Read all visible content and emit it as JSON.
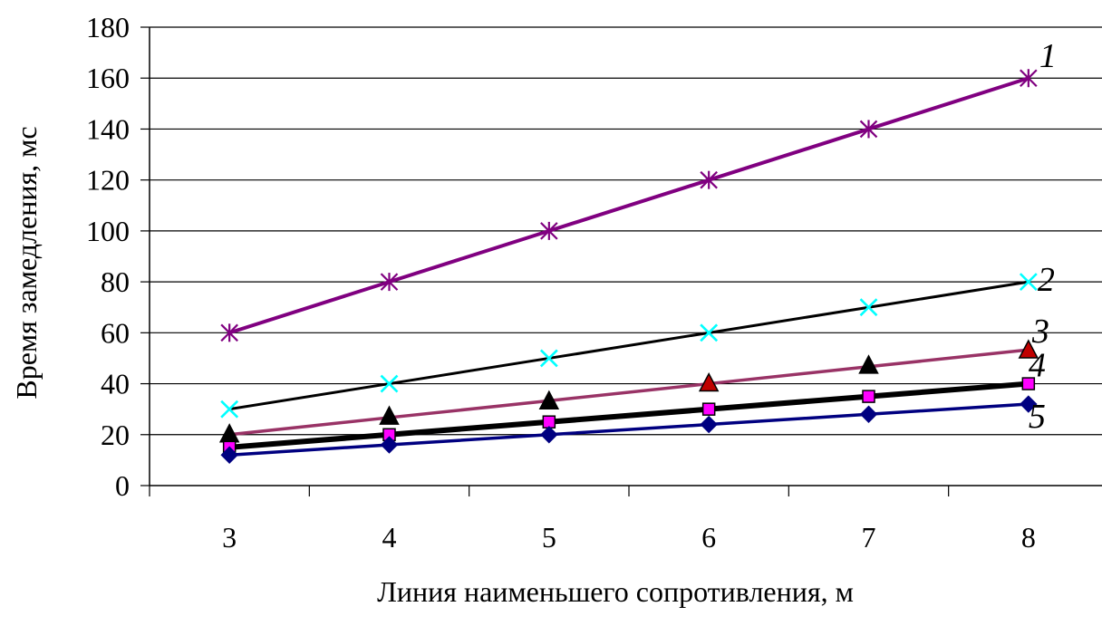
{
  "chart_data": {
    "type": "line",
    "title": "",
    "xlabel": "Линия наименьшего сопротивления, м",
    "ylabel": "Время замедления, мс",
    "categories": [
      "3",
      "4",
      "5",
      "6",
      "7",
      "8"
    ],
    "x": [
      3,
      4,
      5,
      6,
      7,
      8
    ],
    "ylim": [
      0,
      180
    ],
    "yticks": [
      0,
      20,
      40,
      60,
      80,
      100,
      120,
      140,
      160,
      180
    ],
    "grid": "horizontal",
    "legend": "none",
    "series": [
      {
        "name": "1",
        "values": [
          60,
          80,
          100,
          120,
          140,
          160
        ],
        "line": [
          60,
          80,
          100,
          120,
          140,
          160
        ],
        "line_color": "#800080",
        "line_width": 4,
        "marker": "star",
        "marker_color": "#800080"
      },
      {
        "name": "2",
        "values": [
          30,
          40,
          50,
          60,
          70,
          80
        ],
        "line": [
          30,
          40,
          50,
          60,
          70,
          80
        ],
        "line_color": "#000000",
        "line_width": 3,
        "marker": "x",
        "marker_color": "#00FFFF"
      },
      {
        "name": "3",
        "values": [
          20,
          27,
          33,
          40,
          47,
          53
        ],
        "line": [
          20,
          26.7,
          33.3,
          40,
          46.7,
          53.3
        ],
        "line_color": "#993366",
        "line_width": 3.5,
        "marker": "triangle",
        "marker_color": "#000000",
        "marker_highlight_color": "#C00000"
      },
      {
        "name": "4",
        "values": [
          15,
          20,
          25,
          30,
          35,
          40
        ],
        "line": [
          15,
          20,
          25,
          30,
          35,
          40
        ],
        "line_color": "#000000",
        "line_width": 6,
        "marker": "square",
        "marker_color": "#FF00FF"
      },
      {
        "name": "5",
        "values": [
          12,
          16,
          20,
          24,
          28,
          32
        ],
        "line": [
          12,
          16,
          20,
          24,
          28,
          32
        ],
        "line_color": "#000080",
        "line_width": 3.5,
        "marker": "diamond",
        "marker_color": "#000080"
      }
    ]
  }
}
